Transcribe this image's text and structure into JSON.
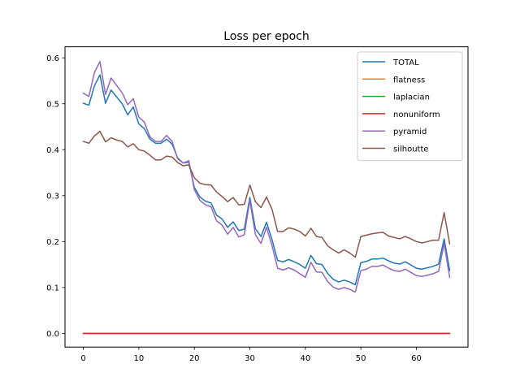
{
  "chart_data": {
    "type": "line",
    "title": "Loss per epoch",
    "xlabel": "",
    "ylabel": "",
    "xlim": [
      -3.3,
      69.3
    ],
    "ylim": [
      -0.0297,
      0.624
    ],
    "xticks": [
      0,
      10,
      20,
      30,
      40,
      50,
      60
    ],
    "yticks": [
      0.0,
      0.1,
      0.2,
      0.3,
      0.4,
      0.5,
      0.6
    ],
    "xtick_labels": [
      "0",
      "10",
      "20",
      "30",
      "40",
      "50",
      "60"
    ],
    "ytick_labels": [
      "0.0",
      "0.1",
      "0.2",
      "0.3",
      "0.4",
      "0.5",
      "0.6"
    ],
    "grid": false,
    "legend_position": "upper-right",
    "series": [
      {
        "name": "TOTAL",
        "color": "#1f77b4",
        "values": [
          0.501,
          0.497,
          0.539,
          0.563,
          0.501,
          0.53,
          0.515,
          0.5,
          0.476,
          0.493,
          0.456,
          0.446,
          0.423,
          0.414,
          0.414,
          0.423,
          0.412,
          0.382,
          0.371,
          0.373,
          0.318,
          0.297,
          0.288,
          0.284,
          0.258,
          0.249,
          0.231,
          0.243,
          0.224,
          0.227,
          0.296,
          0.228,
          0.211,
          0.242,
          0.204,
          0.159,
          0.156,
          0.161,
          0.156,
          0.15,
          0.142,
          0.17,
          0.152,
          0.15,
          0.131,
          0.118,
          0.112,
          0.116,
          0.112,
          0.106,
          0.154,
          0.157,
          0.162,
          0.162,
          0.164,
          0.158,
          0.153,
          0.151,
          0.156,
          0.149,
          0.142,
          0.14,
          0.143,
          0.146,
          0.151,
          0.206,
          0.137
        ]
      },
      {
        "name": "flatness",
        "color": "#ff7f0e",
        "values": [
          0,
          0,
          0,
          0,
          0,
          0,
          0,
          0,
          0,
          0,
          0,
          0,
          0,
          0,
          0,
          0,
          0,
          0,
          0,
          0,
          0,
          0,
          0,
          0,
          0,
          0,
          0,
          0,
          0,
          0,
          0,
          0,
          0,
          0,
          0,
          0,
          0,
          0,
          0,
          0,
          0,
          0,
          0,
          0,
          0,
          0,
          0,
          0,
          0,
          0,
          0,
          0,
          0,
          0,
          0,
          0,
          0,
          0,
          0,
          0,
          0,
          0,
          0,
          0,
          0,
          0,
          0
        ]
      },
      {
        "name": "laplacian",
        "color": "#2ca02c",
        "values": [
          0,
          0,
          0,
          0,
          0,
          0,
          0,
          0,
          0,
          0,
          0,
          0,
          0,
          0,
          0,
          0,
          0,
          0,
          0,
          0,
          0,
          0,
          0,
          0,
          0,
          0,
          0,
          0,
          0,
          0,
          0,
          0,
          0,
          0,
          0,
          0,
          0,
          0,
          0,
          0,
          0,
          0,
          0,
          0,
          0,
          0,
          0,
          0,
          0,
          0,
          0,
          0,
          0,
          0,
          0,
          0,
          0,
          0,
          0,
          0,
          0,
          0,
          0,
          0,
          0,
          0,
          0
        ]
      },
      {
        "name": "nonuniform",
        "color": "#d62728",
        "values": [
          0,
          0,
          0,
          0,
          0,
          0,
          0,
          0,
          0,
          0,
          0,
          0,
          0,
          0,
          0,
          0,
          0,
          0,
          0,
          0,
          0,
          0,
          0,
          0,
          0,
          0,
          0,
          0,
          0,
          0,
          0,
          0,
          0,
          0,
          0,
          0,
          0,
          0,
          0,
          0,
          0,
          0,
          0,
          0,
          0,
          0,
          0,
          0,
          0,
          0,
          0,
          0,
          0,
          0,
          0,
          0,
          0,
          0,
          0,
          0,
          0,
          0,
          0,
          0,
          0,
          0,
          0
        ]
      },
      {
        "name": "pyramid",
        "color": "#9467bd",
        "values": [
          0.523,
          0.516,
          0.568,
          0.592,
          0.52,
          0.556,
          0.54,
          0.524,
          0.498,
          0.511,
          0.471,
          0.46,
          0.428,
          0.418,
          0.418,
          0.431,
          0.418,
          0.38,
          0.371,
          0.376,
          0.313,
          0.29,
          0.28,
          0.276,
          0.245,
          0.236,
          0.216,
          0.231,
          0.21,
          0.215,
          0.29,
          0.215,
          0.196,
          0.231,
          0.191,
          0.142,
          0.138,
          0.143,
          0.138,
          0.13,
          0.122,
          0.155,
          0.134,
          0.133,
          0.113,
          0.101,
          0.096,
          0.1,
          0.096,
          0.09,
          0.137,
          0.14,
          0.146,
          0.146,
          0.149,
          0.142,
          0.137,
          0.135,
          0.14,
          0.133,
          0.126,
          0.124,
          0.127,
          0.13,
          0.135,
          0.196,
          0.122
        ]
      },
      {
        "name": "silhoutte",
        "color": "#8c564b",
        "values": [
          0.418,
          0.414,
          0.43,
          0.44,
          0.417,
          0.426,
          0.421,
          0.418,
          0.406,
          0.413,
          0.4,
          0.397,
          0.388,
          0.378,
          0.378,
          0.386,
          0.384,
          0.372,
          0.365,
          0.367,
          0.339,
          0.327,
          0.324,
          0.323,
          0.308,
          0.298,
          0.287,
          0.296,
          0.28,
          0.281,
          0.323,
          0.287,
          0.274,
          0.297,
          0.27,
          0.222,
          0.222,
          0.23,
          0.227,
          0.222,
          0.212,
          0.229,
          0.211,
          0.209,
          0.191,
          0.182,
          0.175,
          0.182,
          0.175,
          0.166,
          0.211,
          0.214,
          0.217,
          0.219,
          0.22,
          0.212,
          0.209,
          0.206,
          0.211,
          0.206,
          0.2,
          0.197,
          0.2,
          0.203,
          0.203,
          0.263,
          0.195
        ]
      }
    ]
  }
}
